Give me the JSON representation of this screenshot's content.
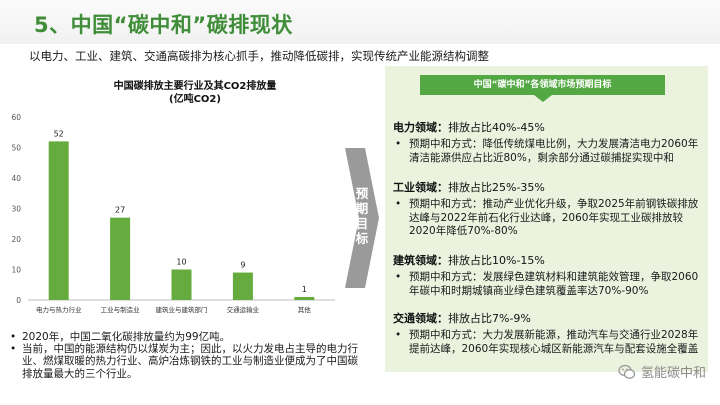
{
  "header": {
    "title": "5、中国“碳中和”碳排现状",
    "subtitle": "以电力、工业、建筑、交通高碳排为核心抓手，推动降低碳排，实现传统产业能源结构调整"
  },
  "chart_data": {
    "type": "bar",
    "title": "中国碳排放主要行业及其CO2排放量\n(亿吨CO2)",
    "categories": [
      "电力与热力行业",
      "工业与制造业",
      "建筑业与建筑部门",
      "交通运输业",
      "其他"
    ],
    "values": [
      52,
      27,
      10,
      9,
      1
    ],
    "ylim": [
      0,
      60
    ],
    "yticks": [
      0,
      10,
      20,
      30,
      40,
      50,
      60
    ],
    "bar_color": "#66ab3d",
    "grid": false,
    "data_labels": true
  },
  "notes": [
    "2020年，中国二氧化碳排放量约为99亿吨。",
    "当前，中国的能源结构仍以煤炭为主；因此，以火力发电占主导的电力行业、燃煤取暖的热力行业、高炉冶炼钢铁的工业与制造业便成为了中国碳排放量最大的三个行业。"
  ],
  "arrow_label": "预\n期\n目\n标",
  "panel": {
    "header": "中国“碳中和”各领域市场预期目标",
    "sectors": [
      {
        "name": "电力领域：",
        "share": "排放占比40%-45%",
        "plan": "预期中和方式：降低传统煤电比例，大力发展清洁电力2060年清洁能源供应占比近80%，剩余部分通过碳捕捉实现中和"
      },
      {
        "name": "工业领域：",
        "share": "排放占比25%-35%",
        "plan": "预期中和方式：推动产业优化升级，争取2025年前钢铁碳排放达峰与2022年前石化行业达峰，2060年实现工业碳排放较2020年降低70%-80%"
      },
      {
        "name": "建筑领域：",
        "share": "排放占比10%-15%",
        "plan": "预期中和方式：发展绿色建筑材料和建筑能效管理，争取2060年碳中和时期城镇商业绿色建筑覆盖率达70%-90%"
      },
      {
        "name": "交通领域：",
        "share": "排放占比7%-9%",
        "plan": "预期中和方式：大力发展新能源，推动汽车与交通行业2028年提前达峰，2060年实现核心城区新能源汽车与配套设施全覆盖"
      }
    ]
  },
  "watermark": "氢能碳中和",
  "colors": {
    "brand_green": "#3f8d38",
    "panel_bg": "#ebf3df",
    "header_green": "#54a844",
    "arrow_gray": "#9a9a9a"
  },
  "icons": {
    "watermark_icon": "wechat-icon"
  }
}
